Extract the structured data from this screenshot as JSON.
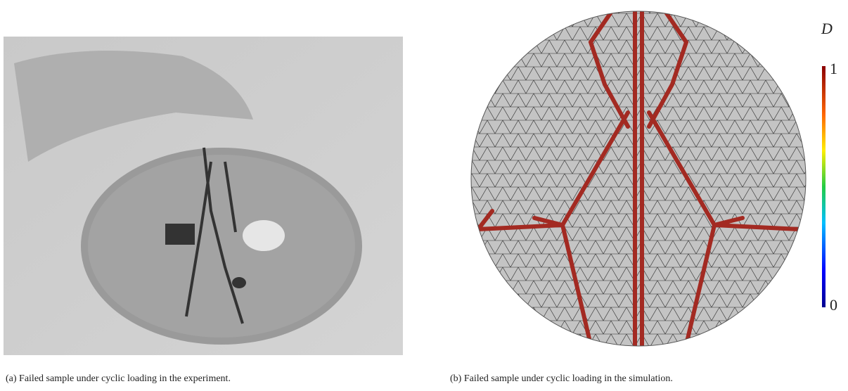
{
  "figure": {
    "panels": [
      {
        "caption": "(a) Failed sample under cyclic loading in the experiment."
      },
      {
        "caption": "(b) Failed sample under cyclic loading in the simulation.",
        "colorbar": {
          "label": "D",
          "max": "1",
          "min": "0"
        }
      }
    ]
  }
}
